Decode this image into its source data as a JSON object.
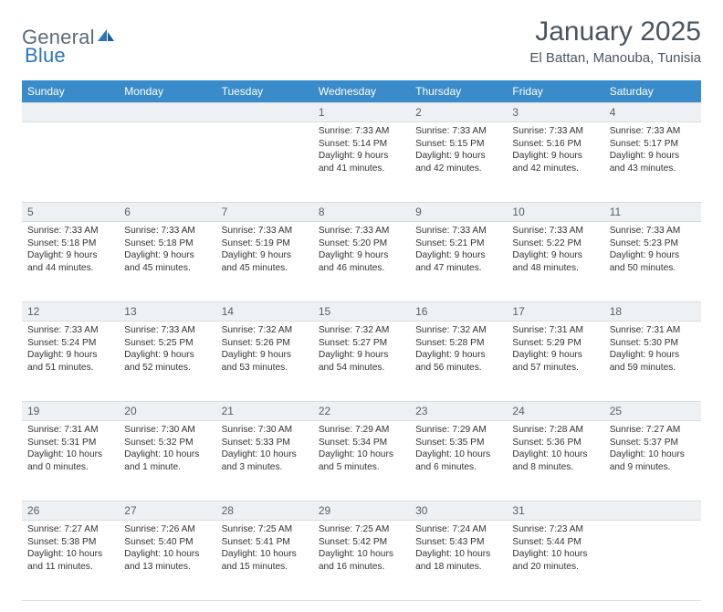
{
  "logo": {
    "word1": "General",
    "word2": "Blue"
  },
  "title": "January 2025",
  "location": "El Battan, Manouba, Tunisia",
  "colors": {
    "header_bg": "#3a8bc9",
    "header_text": "#ffffff",
    "daynum_bg": "#eef1f4",
    "border": "#d5dde3",
    "title_text": "#4a5560",
    "logo_text": "#5c6a78",
    "logo_accent": "#2a77b8"
  },
  "weekdays": [
    "Sunday",
    "Monday",
    "Tuesday",
    "Wednesday",
    "Thursday",
    "Friday",
    "Saturday"
  ],
  "weeks": [
    [
      null,
      null,
      null,
      {
        "n": "1",
        "sr": "7:33 AM",
        "ss": "5:14 PM",
        "dl": "9 hours and 41 minutes."
      },
      {
        "n": "2",
        "sr": "7:33 AM",
        "ss": "5:15 PM",
        "dl": "9 hours and 42 minutes."
      },
      {
        "n": "3",
        "sr": "7:33 AM",
        "ss": "5:16 PM",
        "dl": "9 hours and 42 minutes."
      },
      {
        "n": "4",
        "sr": "7:33 AM",
        "ss": "5:17 PM",
        "dl": "9 hours and 43 minutes."
      }
    ],
    [
      {
        "n": "5",
        "sr": "7:33 AM",
        "ss": "5:18 PM",
        "dl": "9 hours and 44 minutes."
      },
      {
        "n": "6",
        "sr": "7:33 AM",
        "ss": "5:18 PM",
        "dl": "9 hours and 45 minutes."
      },
      {
        "n": "7",
        "sr": "7:33 AM",
        "ss": "5:19 PM",
        "dl": "9 hours and 45 minutes."
      },
      {
        "n": "8",
        "sr": "7:33 AM",
        "ss": "5:20 PM",
        "dl": "9 hours and 46 minutes."
      },
      {
        "n": "9",
        "sr": "7:33 AM",
        "ss": "5:21 PM",
        "dl": "9 hours and 47 minutes."
      },
      {
        "n": "10",
        "sr": "7:33 AM",
        "ss": "5:22 PM",
        "dl": "9 hours and 48 minutes."
      },
      {
        "n": "11",
        "sr": "7:33 AM",
        "ss": "5:23 PM",
        "dl": "9 hours and 50 minutes."
      }
    ],
    [
      {
        "n": "12",
        "sr": "7:33 AM",
        "ss": "5:24 PM",
        "dl": "9 hours and 51 minutes."
      },
      {
        "n": "13",
        "sr": "7:33 AM",
        "ss": "5:25 PM",
        "dl": "9 hours and 52 minutes."
      },
      {
        "n": "14",
        "sr": "7:32 AM",
        "ss": "5:26 PM",
        "dl": "9 hours and 53 minutes."
      },
      {
        "n": "15",
        "sr": "7:32 AM",
        "ss": "5:27 PM",
        "dl": "9 hours and 54 minutes."
      },
      {
        "n": "16",
        "sr": "7:32 AM",
        "ss": "5:28 PM",
        "dl": "9 hours and 56 minutes."
      },
      {
        "n": "17",
        "sr": "7:31 AM",
        "ss": "5:29 PM",
        "dl": "9 hours and 57 minutes."
      },
      {
        "n": "18",
        "sr": "7:31 AM",
        "ss": "5:30 PM",
        "dl": "9 hours and 59 minutes."
      }
    ],
    [
      {
        "n": "19",
        "sr": "7:31 AM",
        "ss": "5:31 PM",
        "dl": "10 hours and 0 minutes."
      },
      {
        "n": "20",
        "sr": "7:30 AM",
        "ss": "5:32 PM",
        "dl": "10 hours and 1 minute."
      },
      {
        "n": "21",
        "sr": "7:30 AM",
        "ss": "5:33 PM",
        "dl": "10 hours and 3 minutes."
      },
      {
        "n": "22",
        "sr": "7:29 AM",
        "ss": "5:34 PM",
        "dl": "10 hours and 5 minutes."
      },
      {
        "n": "23",
        "sr": "7:29 AM",
        "ss": "5:35 PM",
        "dl": "10 hours and 6 minutes."
      },
      {
        "n": "24",
        "sr": "7:28 AM",
        "ss": "5:36 PM",
        "dl": "10 hours and 8 minutes."
      },
      {
        "n": "25",
        "sr": "7:27 AM",
        "ss": "5:37 PM",
        "dl": "10 hours and 9 minutes."
      }
    ],
    [
      {
        "n": "26",
        "sr": "7:27 AM",
        "ss": "5:38 PM",
        "dl": "10 hours and 11 minutes."
      },
      {
        "n": "27",
        "sr": "7:26 AM",
        "ss": "5:40 PM",
        "dl": "10 hours and 13 minutes."
      },
      {
        "n": "28",
        "sr": "7:25 AM",
        "ss": "5:41 PM",
        "dl": "10 hours and 15 minutes."
      },
      {
        "n": "29",
        "sr": "7:25 AM",
        "ss": "5:42 PM",
        "dl": "10 hours and 16 minutes."
      },
      {
        "n": "30",
        "sr": "7:24 AM",
        "ss": "5:43 PM",
        "dl": "10 hours and 18 minutes."
      },
      {
        "n": "31",
        "sr": "7:23 AM",
        "ss": "5:44 PM",
        "dl": "10 hours and 20 minutes."
      },
      null
    ]
  ],
  "labels": {
    "sunrise": "Sunrise: ",
    "sunset": "Sunset: ",
    "daylight": "Daylight: "
  }
}
